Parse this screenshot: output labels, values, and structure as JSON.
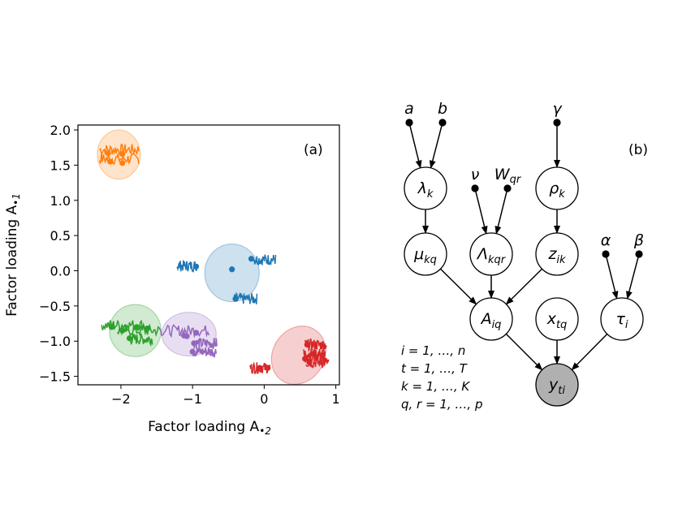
{
  "chart_data": [
    {
      "type": "scatter",
      "panel_label": "(a)",
      "xlabel": "Factor loading A",
      "xlabel_sub": "•2",
      "ylabel": "Factor loading A",
      "ylabel_sub": "•1",
      "xlim": [
        -2.6,
        1.05
      ],
      "ylim": [
        -1.62,
        2.07
      ],
      "xticks": [
        -2,
        -1,
        0,
        1
      ],
      "xtick_labels": [
        "−2",
        "−1",
        "0",
        "1"
      ],
      "yticks": [
        2.0,
        1.5,
        1.0,
        0.5,
        0.0,
        -0.5,
        -1.0,
        -1.5
      ],
      "ytick_labels": [
        "2.0",
        "1.5",
        "1.0",
        "0.5",
        "0.0",
        "−0.5",
        "−1.0",
        "−1.5"
      ],
      "clusters": [
        {
          "color": "#ff7f0e",
          "center": [
            -2.03,
            1.65
          ],
          "radius": [
            0.3,
            0.35
          ],
          "rotation": 0,
          "points": [
            [
              -2.15,
              1.55
            ],
            [
              -1.98,
              1.53
            ],
            [
              -1.98,
              1.66
            ],
            [
              -2.18,
              1.67
            ]
          ],
          "traces": [
            [
              -2.3,
              1.72,
              0.55
            ],
            [
              -2.3,
              1.59,
              0.55
            ]
          ]
        },
        {
          "color": "#1f77b4",
          "center": [
            -0.45,
            -0.03
          ],
          "radius": [
            0.38,
            0.41
          ],
          "rotation": 0,
          "points": [
            [
              -0.95,
              0.06
            ],
            [
              -0.45,
              0.02
            ],
            [
              -0.18,
              0.17
            ],
            [
              -0.4,
              -0.4
            ]
          ],
          "traces": [
            [
              -1.22,
              0.07,
              0.28
            ],
            [
              -0.14,
              0.16,
              0.3
            ],
            [
              -0.43,
              -0.4,
              0.33
            ]
          ]
        },
        {
          "color": "#2ca02c",
          "center": [
            -1.8,
            -0.85
          ],
          "radius": [
            0.36,
            0.37
          ],
          "rotation": 0,
          "points": [
            [
              -2.13,
              -0.8
            ],
            [
              -1.98,
              -0.85
            ],
            [
              -1.78,
              -0.8
            ],
            [
              -1.63,
              -0.82
            ],
            [
              -1.88,
              -0.96
            ]
          ],
          "traces": [
            [
              -2.27,
              -0.77,
              0.6
            ],
            [
              -2.05,
              -0.85,
              0.6
            ],
            [
              -1.88,
              -0.97,
              0.32
            ]
          ]
        },
        {
          "color": "#9467bd",
          "center": [
            -1.05,
            -0.9
          ],
          "radius": [
            0.38,
            0.31
          ],
          "rotation": 0,
          "points": [
            [
              -1.12,
              -0.92
            ],
            [
              -0.95,
              -0.88
            ],
            [
              -1.08,
              -0.93
            ],
            [
              -1.0,
              -1.15
            ],
            [
              -0.98,
              -1.03
            ]
          ],
          "traces": [
            [
              -1.45,
              -0.85,
              0.68
            ],
            [
              -1.0,
              -1.15,
              0.33
            ],
            [
              -0.98,
              -1.03,
              0.32
            ]
          ]
        },
        {
          "color": "#d62728",
          "center": [
            0.48,
            -1.2
          ],
          "radius": [
            0.36,
            0.43
          ],
          "rotation": 32,
          "points": [
            [
              0.05,
              -1.38
            ],
            [
              -0.06,
              -1.38
            ],
            [
              0.57,
              -1.25
            ],
            [
              0.63,
              -1.3
            ],
            [
              0.6,
              -1.05
            ]
          ],
          "traces": [
            [
              -0.2,
              -1.38,
              0.28
            ],
            [
              0.55,
              -1.24,
              0.32
            ],
            [
              0.58,
              -1.3,
              0.32
            ],
            [
              0.57,
              -1.05,
              0.3
            ],
            [
              0.55,
              -1.18,
              0.3
            ]
          ]
        }
      ]
    }
  ],
  "diagram": {
    "panel_label": "(b)",
    "nodes": [
      {
        "id": "lambda",
        "base": "λ",
        "sub": "k",
        "shaded": false
      },
      {
        "id": "rho",
        "base": "ρ",
        "sub": "k",
        "shaded": false
      },
      {
        "id": "mu",
        "base": "μ",
        "sub": "kq",
        "shaded": false
      },
      {
        "id": "Lambda",
        "base": "Λ",
        "sub": "kqr",
        "shaded": false
      },
      {
        "id": "z",
        "base": "z",
        "sub": "ik",
        "shaded": false
      },
      {
        "id": "A",
        "base": "A",
        "sub": "iq",
        "shaded": false
      },
      {
        "id": "x",
        "base": "x",
        "sub": "tq",
        "shaded": false
      },
      {
        "id": "tau",
        "base": "τ",
        "sub": "i",
        "shaded": false
      },
      {
        "id": "y",
        "base": "y",
        "sub": "ti",
        "shaded": true
      }
    ],
    "hyperparameters": [
      {
        "id": "a",
        "base": "a",
        "sub": ""
      },
      {
        "id": "b",
        "base": "b",
        "sub": ""
      },
      {
        "id": "gamma",
        "base": "γ",
        "sub": ""
      },
      {
        "id": "nu",
        "base": "ν",
        "sub": ""
      },
      {
        "id": "W",
        "base": "W",
        "sub": "qr"
      },
      {
        "id": "alpha",
        "base": "α",
        "sub": ""
      },
      {
        "id": "beta",
        "base": "β",
        "sub": ""
      }
    ],
    "edges": [
      [
        "a",
        "lambda"
      ],
      [
        "b",
        "lambda"
      ],
      [
        "gamma",
        "rho"
      ],
      [
        "nu",
        "Lambda"
      ],
      [
        "W",
        "Lambda"
      ],
      [
        "lambda",
        "mu"
      ],
      [
        "rho",
        "z"
      ],
      [
        "mu",
        "A"
      ],
      [
        "Lambda",
        "A"
      ],
      [
        "z",
        "A"
      ],
      [
        "alpha",
        "tau"
      ],
      [
        "beta",
        "tau"
      ],
      [
        "A",
        "y"
      ],
      [
        "x",
        "y"
      ],
      [
        "tau",
        "y"
      ]
    ],
    "index_ranges": [
      "i = 1, …, n",
      "t = 1, …, T",
      "k = 1, …, K",
      "q, r = 1, …, p"
    ]
  }
}
